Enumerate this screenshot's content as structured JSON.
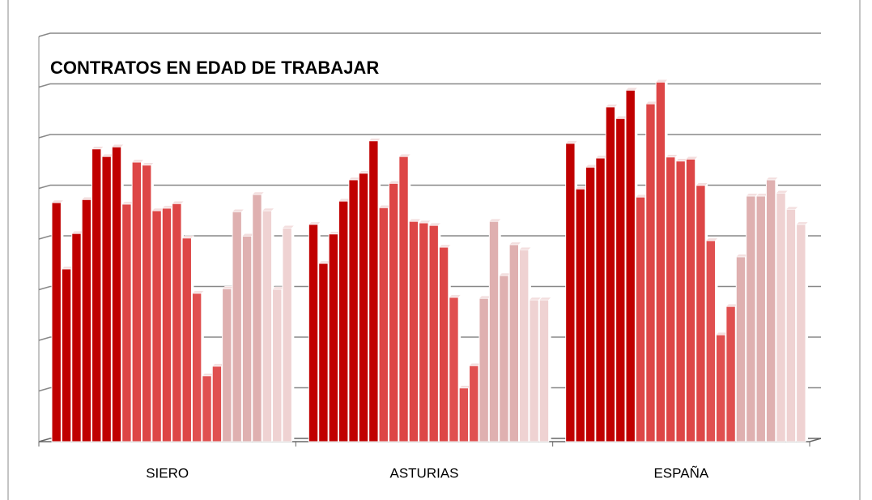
{
  "chart_data": {
    "type": "bar",
    "title": "CONTRATOS EN EDAD DE TRABAJAR",
    "categories": [
      "SIERO",
      "ASTURIAS",
      "ESPAÑA"
    ],
    "values": [
      [
        4.72,
        3.41,
        4.11,
        4.78,
        5.78,
        5.63,
        5.82,
        4.69,
        5.52,
        5.46,
        4.56,
        4.61,
        4.7,
        4.02,
        2.93,
        1.3,
        1.49,
        3.02,
        4.54,
        4.06,
        4.88,
        4.56,
        3.01,
        4.22
      ],
      [
        4.29,
        3.52,
        4.1,
        4.75,
        5.17,
        5.3,
        5.94,
        4.62,
        5.1,
        5.63,
        4.35,
        4.32,
        4.27,
        3.84,
        2.85,
        1.06,
        1.5,
        2.83,
        4.35,
        3.28,
        3.89,
        3.79,
        2.8,
        2.8
      ],
      [
        5.89,
        4.99,
        5.42,
        5.6,
        6.61,
        6.38,
        6.94,
        4.83,
        6.67,
        7.1,
        5.62,
        5.54,
        5.58,
        5.06,
        3.97,
        2.11,
        2.67,
        3.65,
        4.85,
        4.85,
        5.17,
        4.91,
        4.59,
        4.29
      ]
    ],
    "bar_colors": [
      "#c00000",
      "#c00000",
      "#c00000",
      "#c00000",
      "#c00000",
      "#c00000",
      "#c00000",
      "#dd4646",
      "#dd4646",
      "#dd4646",
      "#dd4646",
      "#dd4646",
      "#dd4646",
      "#dd4646",
      "#e05050",
      "#e05050",
      "#e05050",
      "#dfb0b0",
      "#dfb0b0",
      "#dfb0b0",
      "#dfb0b0",
      "#efd2d2",
      "#efd2d2",
      "#efd2d2"
    ],
    "ylim": [
      0,
      8
    ],
    "yticks": [
      0,
      1,
      2,
      3,
      4,
      5,
      6,
      7,
      8
    ],
    "grid": true
  }
}
